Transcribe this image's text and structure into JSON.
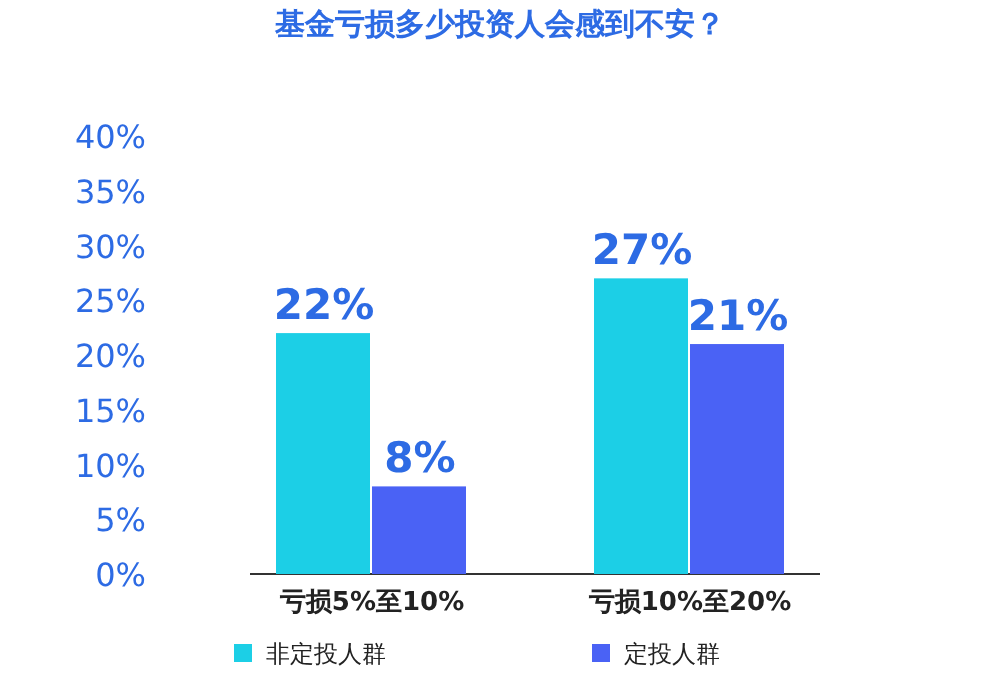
{
  "chart_data": {
    "type": "bar",
    "title": "基金亏损多少投资人会感到不安？",
    "categories": [
      "亏损5%至10%",
      "亏损10%至20%"
    ],
    "series": [
      {
        "name": "非定投人群",
        "color": "#1ccfe6",
        "values": [
          22,
          27
        ],
        "value_labels": [
          "22%",
          "27%"
        ]
      },
      {
        "name": "定投人群",
        "color": "#4a62f5",
        "values": [
          8,
          21
        ],
        "value_labels": [
          "8%",
          "21%"
        ]
      }
    ],
    "ylim": [
      0,
      40
    ],
    "yticks": [
      {
        "value": 0,
        "label": "0%"
      },
      {
        "value": 5,
        "label": "5%"
      },
      {
        "value": 10,
        "label": "10%"
      },
      {
        "value": 15,
        "label": "15%"
      },
      {
        "value": 20,
        "label": "20%"
      },
      {
        "value": 25,
        "label": "25%"
      },
      {
        "value": 30,
        "label": "30%"
      },
      {
        "value": 35,
        "label": "35%"
      },
      {
        "value": 40,
        "label": "40%"
      }
    ],
    "grid": false,
    "legend": "bottom left"
  }
}
